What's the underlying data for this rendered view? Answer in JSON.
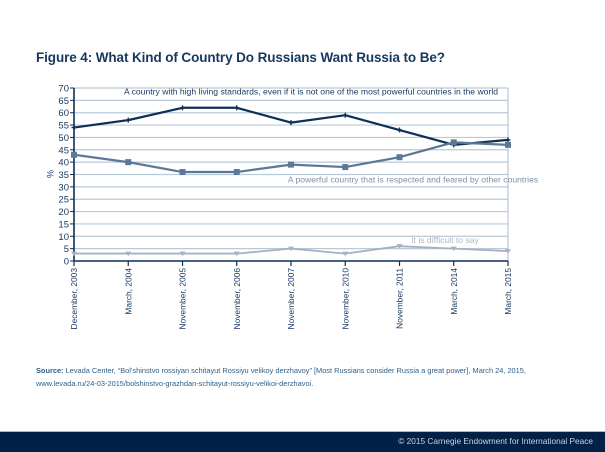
{
  "title": "Figure 4: What Kind of Country Do Russians Want Russia to Be?",
  "source": {
    "label": "Source:",
    "text": "Levada Center, “Bol’shinstvo rossiyan schitayut Rossiyu velikoy derzhavoy” [Most Russians consider Russia a great power], March 24, 2015,",
    "url": "www.levada.ru/24-03-2015/bolshinstvo-grazhdan-schitayut-rossiyu-velikoi-derzhavoi."
  },
  "footer": "© 2015 Carnegie Endowment for International Peace",
  "colors": {
    "series_high_living": "#0e2f56",
    "series_powerful": "#5b7896",
    "series_difficult": "#a3b1c0",
    "grid": "#b9c9d8",
    "axis": "#0e2f56",
    "footer_bg": "#012146"
  },
  "chart_data": {
    "type": "line",
    "title": "Figure 4: What Kind of Country Do Russians Want Russia to Be?",
    "xlabel": "",
    "ylabel": "%",
    "ylim": [
      0,
      70
    ],
    "yticks": [
      0,
      5,
      10,
      15,
      20,
      25,
      30,
      35,
      40,
      45,
      50,
      55,
      60,
      65,
      70
    ],
    "grid": true,
    "categories": [
      "December, 2003",
      "March, 2004",
      "November, 2005",
      "November, 2006",
      "November, 2007",
      "November, 2010",
      "November, 2011",
      "March, 2014",
      "March, 2015"
    ],
    "series": [
      {
        "name": "A country with high living standards, even if it is not one of the most powerful countries in the world",
        "values": [
          54,
          57,
          62,
          62,
          56,
          59,
          53,
          47,
          49
        ],
        "marker": "plus"
      },
      {
        "name": "A powerful country that is respected and feared by other countries",
        "values": [
          43,
          40,
          36,
          36,
          39,
          38,
          42,
          48,
          47
        ],
        "marker": "square"
      },
      {
        "name": "It is difficult to say",
        "values": [
          3,
          3,
          3,
          3,
          5,
          3,
          6,
          5,
          4
        ],
        "marker": "triangle-down"
      }
    ]
  }
}
